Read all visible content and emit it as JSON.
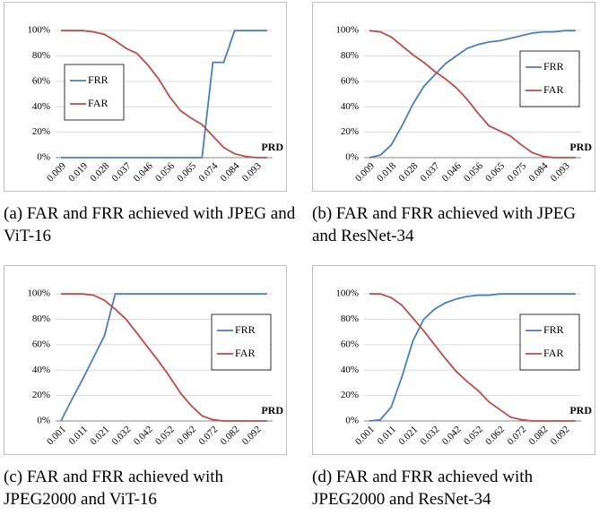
{
  "chart_data": [
    {
      "type": "line",
      "caption": "(a) FAR and FRR achieved with JPEG and ViT-16",
      "x_label": "PRD",
      "categories": [
        "0.009",
        null,
        "0.019",
        null,
        "0.028",
        null,
        "0.037",
        null,
        "0.046",
        null,
        "0.056",
        null,
        "0.065",
        null,
        "0.074",
        null,
        "0.084",
        null,
        "0.093",
        null
      ],
      "series": [
        {
          "name": "FRR",
          "color": "#4a7ebb",
          "values": [
            0,
            0,
            0,
            0,
            0,
            0,
            0,
            0,
            0,
            0,
            0,
            0,
            0,
            0,
            75,
            75,
            100,
            100,
            100,
            100
          ]
        },
        {
          "name": "FAR",
          "color": "#be4b48",
          "values": [
            100,
            100,
            100,
            99,
            97,
            92,
            86,
            82,
            73,
            62,
            48,
            37,
            31,
            26,
            17,
            8,
            3,
            1,
            0,
            0
          ]
        }
      ],
      "ylim": [
        0,
        110
      ],
      "yticks": [
        {
          "value": 0,
          "label": "0%"
        },
        {
          "value": 20,
          "label": "20%"
        },
        {
          "value": 40,
          "label": "40%"
        },
        {
          "value": 60,
          "label": "60%"
        },
        {
          "value": 80,
          "label": "80%"
        },
        {
          "value": 100,
          "label": "100%"
        }
      ],
      "grid": true,
      "legend": "center-left"
    },
    {
      "type": "line",
      "caption": "(b) FAR and FRR achieved with JPEG and ResNet-34",
      "x_label": "PRD",
      "categories": [
        "0.009",
        null,
        "0.018",
        null,
        "0.028",
        null,
        "0.037",
        null,
        "0.046",
        null,
        "0.056",
        null,
        "0.065",
        null,
        "0.075",
        null,
        "0.084",
        null,
        "0.093",
        null
      ],
      "series": [
        {
          "name": "FRR",
          "color": "#4a7ebb",
          "values": [
            0,
            2,
            10,
            25,
            42,
            56,
            65,
            74,
            80,
            86,
            89,
            91,
            92,
            94,
            96,
            98,
            99,
            99,
            100,
            100
          ]
        },
        {
          "name": "FAR",
          "color": "#be4b48",
          "values": [
            100,
            99,
            95,
            88,
            81,
            75,
            68,
            62,
            55,
            46,
            35,
            25,
            21,
            17,
            10,
            4,
            1,
            0,
            0,
            0
          ]
        }
      ],
      "ylim": [
        0,
        110
      ],
      "yticks": [
        {
          "value": 0,
          "label": "0%"
        },
        {
          "value": 20,
          "label": "20%"
        },
        {
          "value": 40,
          "label": "40%"
        },
        {
          "value": 60,
          "label": "60%"
        },
        {
          "value": 80,
          "label": "80%"
        },
        {
          "value": 100,
          "label": "100%"
        }
      ],
      "grid": true,
      "legend": "center-right"
    },
    {
      "type": "line",
      "caption": "(c) FAR and FRR achieved with JPEG2000 and ViT-16",
      "x_label": "PRD",
      "categories": [
        "0.001",
        null,
        "0.011",
        null,
        "0.021",
        null,
        "0.032",
        null,
        "0.042",
        null,
        "0.052",
        null,
        "0.062",
        null,
        "0.072",
        null,
        "0.082",
        null,
        "0.092",
        null
      ],
      "series": [
        {
          "name": "FRR",
          "color": "#4a7ebb",
          "values": [
            0,
            17,
            33,
            50,
            67,
            100,
            100,
            100,
            100,
            100,
            100,
            100,
            100,
            100,
            100,
            100,
            100,
            100,
            100,
            100
          ]
        },
        {
          "name": "FAR",
          "color": "#be4b48",
          "values": [
            100,
            100,
            100,
            99,
            95,
            88,
            80,
            69,
            58,
            47,
            35,
            22,
            12,
            4,
            1,
            0,
            0,
            0,
            0,
            0
          ]
        }
      ],
      "ylim": [
        0,
        110
      ],
      "yticks": [
        {
          "value": 0,
          "label": "0%"
        },
        {
          "value": 20,
          "label": "20%"
        },
        {
          "value": 40,
          "label": "40%"
        },
        {
          "value": 60,
          "label": "60%"
        },
        {
          "value": 80,
          "label": "80%"
        },
        {
          "value": 100,
          "label": "100%"
        }
      ],
      "grid": true,
      "legend": "center-right"
    },
    {
      "type": "line",
      "caption": "(d) FAR and FRR achieved with JPEG2000 and ResNet-34",
      "x_label": "PRD",
      "categories": [
        "0.001",
        null,
        "0.011",
        null,
        "0.021",
        null,
        "0.032",
        null,
        "0.042",
        null,
        "0.052",
        null,
        "0.062",
        null,
        "0.072",
        null,
        "0.082",
        null,
        "0.092",
        null
      ],
      "series": [
        {
          "name": "FRR",
          "color": "#4a7ebb",
          "values": [
            0,
            1,
            11,
            35,
            63,
            80,
            88,
            93,
            96,
            98,
            99,
            99,
            100,
            100,
            100,
            100,
            100,
            100,
            100,
            100
          ]
        },
        {
          "name": "FAR",
          "color": "#be4b48",
          "values": [
            100,
            100,
            97,
            91,
            81,
            71,
            60,
            49,
            39,
            31,
            24,
            15,
            9,
            3,
            1,
            0,
            0,
            0,
            0,
            0
          ]
        }
      ],
      "ylim": [
        0,
        110
      ],
      "yticks": [
        {
          "value": 0,
          "label": "0%"
        },
        {
          "value": 20,
          "label": "20%"
        },
        {
          "value": 40,
          "label": "40%"
        },
        {
          "value": 60,
          "label": "60%"
        },
        {
          "value": 80,
          "label": "80%"
        },
        {
          "value": 100,
          "label": "100%"
        }
      ],
      "grid": true,
      "legend": "center-right"
    }
  ]
}
